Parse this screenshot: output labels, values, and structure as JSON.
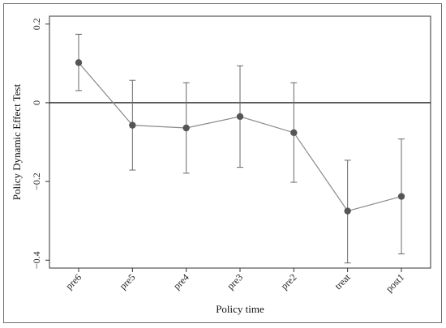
{
  "chart_data": {
    "type": "scatter",
    "title": "",
    "xlabel": "Policy time",
    "ylabel": "Policy Dynamic Effect Test",
    "categories": [
      "pre6",
      "pre5",
      "pre4",
      "pre3",
      "pre2",
      "treat",
      "post1"
    ],
    "series": [
      {
        "values": [
          0.102,
          -0.057,
          -0.064,
          -0.035,
          -0.076,
          -0.275,
          -0.238
        ],
        "ci_lower": [
          0.031,
          -0.171,
          -0.179,
          -0.164,
          -0.202,
          -0.407,
          -0.384
        ],
        "ci_upper": [
          0.174,
          0.057,
          0.051,
          0.094,
          0.051,
          -0.146,
          -0.092
        ]
      }
    ],
    "ylim": [
      -0.42,
      0.22
    ],
    "yticks": [
      0.2,
      0,
      -0.2,
      -0.4
    ],
    "ytick_labels": [
      "0.2",
      "0",
      "−0.2",
      "−0.4"
    ],
    "reference_line_y": 0,
    "grid": false,
    "colors": {
      "marker": "#555555",
      "line": "#8a8a8a",
      "errorbar": "#6a6a6a",
      "reference": "#222222",
      "frame": "#333333"
    }
  }
}
